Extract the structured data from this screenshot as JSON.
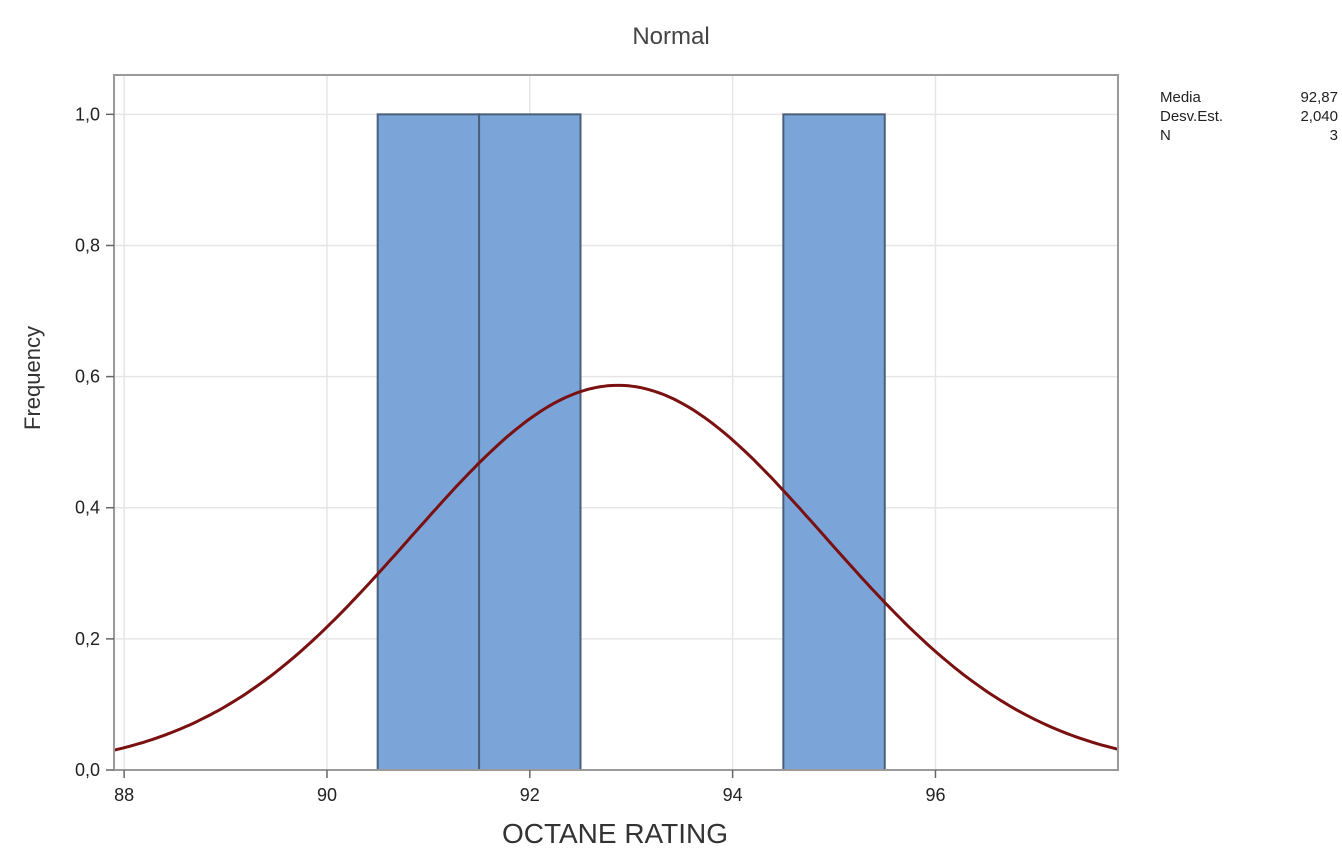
{
  "chart_data": {
    "type": "bar",
    "title": "Normal",
    "xlabel": "OCTANE RATING",
    "ylabel": "Frequency",
    "xlim": [
      87.9,
      97.8
    ],
    "ylim": [
      0,
      1.06
    ],
    "xticks": [
      88,
      90,
      92,
      94,
      96
    ],
    "xtick_labels": [
      "88",
      "90",
      "92",
      "94",
      "96"
    ],
    "yticks": [
      0,
      0.2,
      0.4,
      0.6,
      0.8,
      1.0
    ],
    "ytick_labels": [
      "0,0",
      "0,2",
      "0,4",
      "0,6",
      "0,8",
      "1,0"
    ],
    "grid": true,
    "bins": [
      {
        "x0": 90.5,
        "x1": 91.5,
        "value": 1
      },
      {
        "x0": 91.5,
        "x1": 92.5,
        "value": 1
      },
      {
        "x0": 94.5,
        "x1": 95.5,
        "value": 1
      }
    ],
    "normal_fit": {
      "mean": 92.87,
      "stdev": 2.04,
      "n": 3,
      "bin_width": 1
    },
    "stats": [
      {
        "label": "Media",
        "value": "92,87"
      },
      {
        "label": "Desv.Est.",
        "value": "2,040"
      },
      {
        "label": "N",
        "value": "3"
      }
    ],
    "colors": {
      "bar_fill": "#7ba5d8",
      "bar_stroke": "#4a5f7a",
      "curve": "#7a1010",
      "grid": "#e6e6e6",
      "frame": "#9a9a9a"
    }
  }
}
